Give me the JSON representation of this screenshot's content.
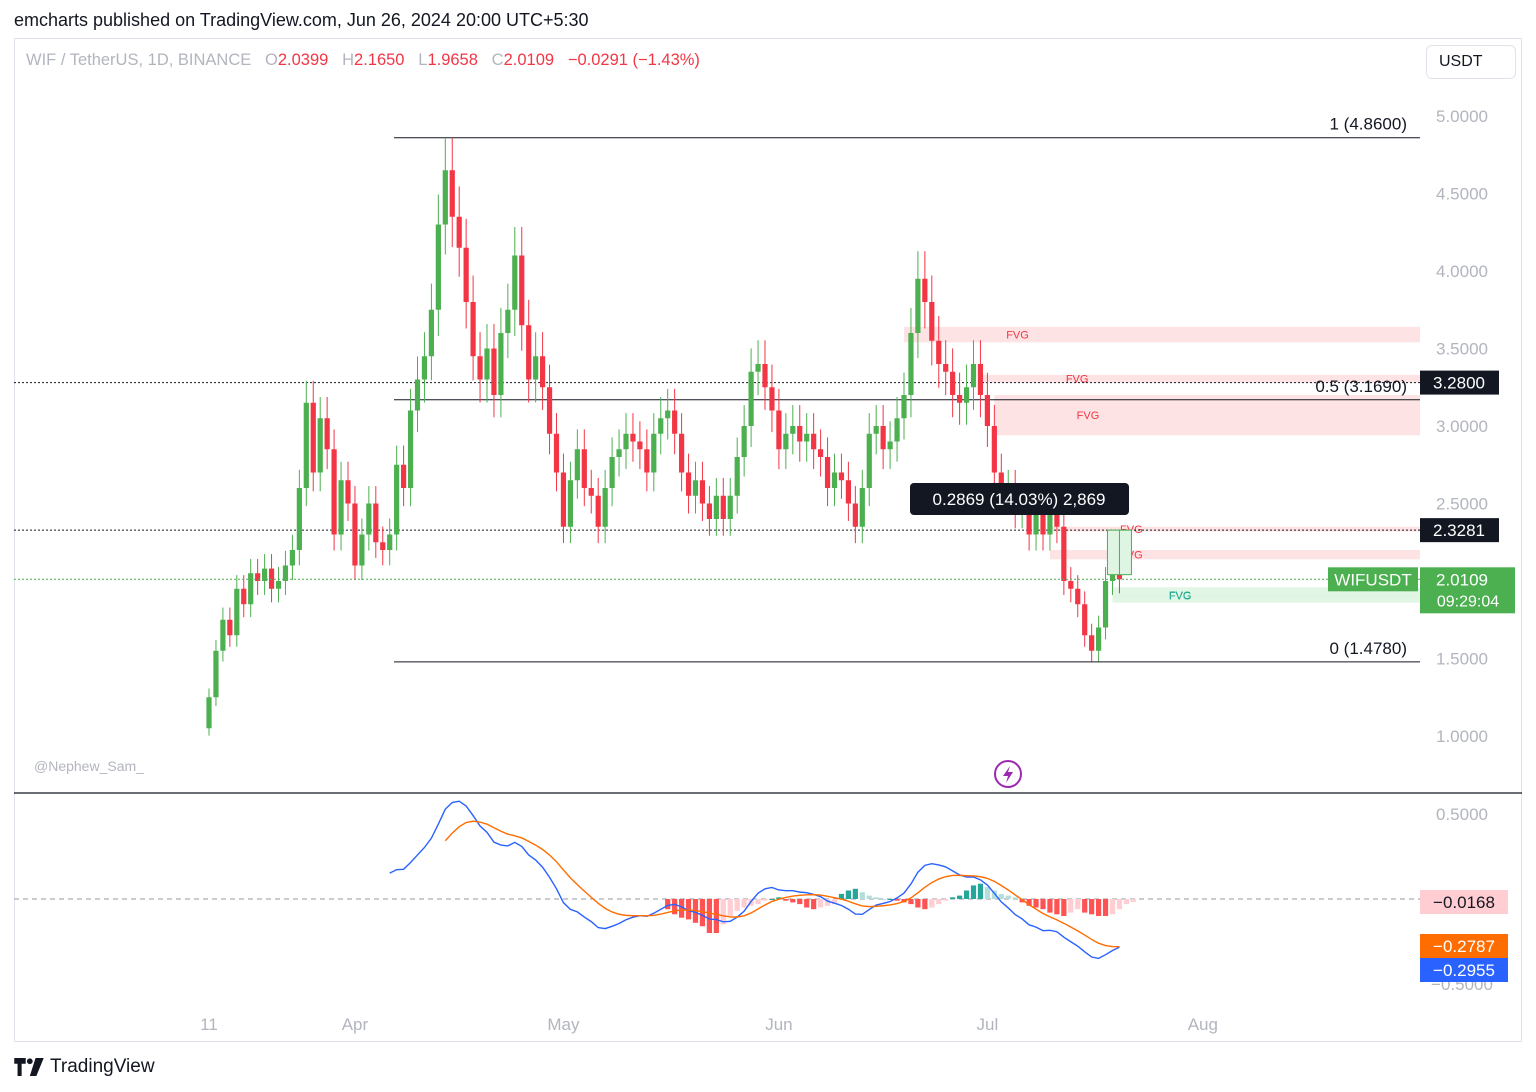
{
  "header": {
    "text": "emcharts published on TradingView.com, Jun 26, 2024 20:00 UTC+5:30"
  },
  "symbol": {
    "name": "WIF / TetherUS, 1D, BINANCE",
    "open_label": "O",
    "open": "2.0399",
    "high_label": "H",
    "high": "2.1650",
    "low_label": "L",
    "low": "1.9658",
    "close_label": "C",
    "close": "2.0109",
    "change": "−0.0291 (−1.43%)"
  },
  "currency_button": "USDT",
  "watermark": "@Nephew_Sam_",
  "footer": {
    "brand": "TradingView"
  },
  "colors": {
    "up": "#4caf50",
    "down": "#f23645",
    "macd": "#2962ff",
    "signal": "#ff6d00",
    "fvg_bear": "#fde0e0",
    "fvg_bull": "#dff5e3"
  },
  "chart_data": {
    "type": "candlestick",
    "title": "WIF / TetherUS, 1D, BINANCE",
    "price_axis": {
      "ticks": [
        "5.0000",
        "4.5000",
        "4.0000",
        "3.5000",
        "3.0000",
        "2.5000",
        "1.5000",
        "1.0000"
      ],
      "range": [
        0.75,
        5.15
      ]
    },
    "time_axis": {
      "ticks": [
        "11",
        "Apr",
        "May",
        "Jun",
        "Jul",
        "Aug"
      ],
      "tick_days": [
        10,
        31,
        61,
        92,
        122,
        153
      ]
    },
    "closes": [
      1.25,
      1.55,
      1.75,
      1.65,
      1.95,
      1.85,
      2.05,
      2.0,
      2.08,
      1.95,
      2.0,
      2.1,
      2.2,
      2.6,
      3.15,
      2.7,
      3.05,
      2.85,
      2.3,
      2.65,
      2.5,
      2.1,
      2.3,
      2.5,
      2.25,
      2.2,
      2.3,
      2.75,
      2.6,
      3.1,
      3.3,
      3.45,
      3.75,
      4.3,
      4.65,
      4.35,
      4.15,
      3.8,
      3.45,
      3.3,
      3.5,
      3.2,
      3.6,
      3.75,
      4.1,
      3.65,
      3.3,
      3.45,
      3.25,
      2.95,
      2.7,
      2.35,
      2.65,
      2.85,
      2.6,
      2.55,
      2.35,
      2.6,
      2.8,
      2.85,
      2.95,
      2.9,
      2.85,
      2.7,
      2.95,
      3.05,
      3.1,
      2.95,
      2.7,
      2.55,
      2.65,
      2.5,
      2.4,
      2.55,
      2.4,
      2.55,
      2.8,
      3.0,
      3.35,
      3.4,
      3.25,
      3.1,
      2.85,
      2.95,
      3.0,
      2.9,
      2.95,
      2.85,
      2.8,
      2.6,
      2.7,
      2.65,
      2.5,
      2.35,
      2.6,
      2.95,
      3.0,
      2.85,
      2.9,
      3.05,
      3.2,
      3.6,
      3.95,
      3.8,
      3.55,
      3.4,
      3.35,
      3.2,
      3.15,
      3.25,
      3.4,
      3.2,
      3.0,
      2.7,
      2.55,
      2.6,
      2.45,
      2.5,
      2.3,
      2.45,
      2.3,
      2.5,
      2.35,
      2.0,
      1.95,
      1.85,
      1.65,
      1.55,
      1.7,
      2.0,
      2.05,
      2.0109
    ],
    "fibonacci": [
      {
        "label": "1 (4.8600)",
        "price": 4.86
      },
      {
        "label": "0.5 (3.1690)",
        "price": 3.169
      },
      {
        "label": "0 (1.4780)",
        "price": 1.478
      }
    ],
    "horizontal_lines": [
      {
        "label": "3.2800",
        "price": 3.28
      },
      {
        "label": "2.3281",
        "price": 2.3281
      }
    ],
    "current_price": {
      "symbol": "WIFUSDT",
      "price": "2.0109",
      "countdown": "09:29:04"
    },
    "measure_label": "0.2869 (14.03%) 2,869",
    "fvg_zones": [
      {
        "label": "FVG",
        "kind": "bear",
        "top": 3.64,
        "bottom": 3.54,
        "start_day": 100
      },
      {
        "label": "FVG",
        "kind": "bear",
        "top": 3.33,
        "bottom": 3.28,
        "start_day": 111
      },
      {
        "label": "FVG",
        "kind": "bear",
        "top": 3.2,
        "bottom": 2.94,
        "start_day": 113
      },
      {
        "label": "FVG",
        "kind": "bear",
        "top": 2.35,
        "bottom": 2.32,
        "start_day": 121
      },
      {
        "label": "FVG",
        "kind": "bear",
        "top": 2.2,
        "bottom": 2.14,
        "start_day": 121
      },
      {
        "label": "FVG",
        "kind": "bull",
        "top": 1.96,
        "bottom": 1.86,
        "start_day": 130
      },
      {
        "label": "FVG",
        "kind": "bull",
        "top": 1.91,
        "bottom": 1.9,
        "start_day": 130
      }
    ],
    "macd": {
      "axis_ticks": [
        "0.5000",
        "−0.5000"
      ],
      "range": [
        -0.65,
        0.75
      ],
      "histogram_value": "−0.0168",
      "signal_value": "−0.2787",
      "macd_value": "−0.2955",
      "histogram": [
        -0.06,
        -0.09,
        -0.11,
        -0.12,
        -0.14,
        -0.16,
        -0.2,
        -0.2,
        -0.15,
        -0.1,
        -0.07,
        -0.05,
        -0.04,
        -0.03,
        -0.01,
        0.0,
        0.01,
        -0.01,
        -0.02,
        -0.03,
        -0.05,
        -0.06,
        -0.05,
        -0.04,
        -0.03,
        0.03,
        0.05,
        0.06,
        0.04,
        0.02,
        0.01,
        0.0,
        0.0,
        -0.01,
        -0.02,
        -0.03,
        -0.05,
        -0.06,
        -0.05,
        -0.03,
        -0.01,
        0.01,
        0.02,
        0.05,
        0.08,
        0.09,
        0.07,
        0.05,
        0.03,
        0.02,
        0.01,
        -0.02,
        -0.04,
        -0.05,
        -0.06,
        -0.08,
        -0.09,
        -0.1,
        -0.08,
        -0.06,
        -0.08,
        -0.09,
        -0.1,
        -0.1,
        -0.09,
        -0.06,
        -0.03,
        -0.0168
      ]
    }
  }
}
